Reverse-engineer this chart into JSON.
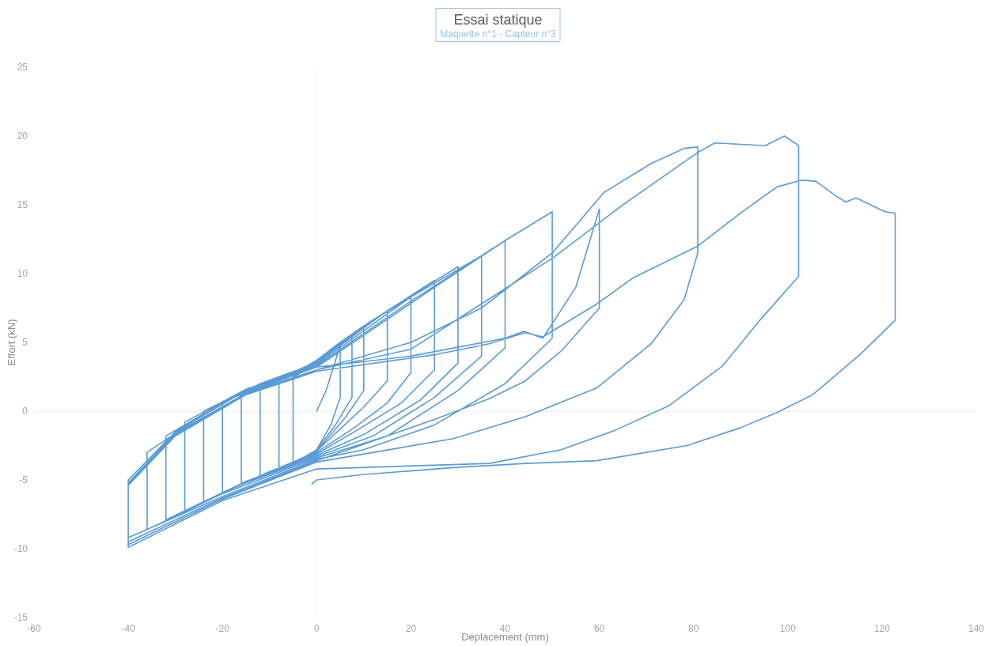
{
  "chart_data": {
    "type": "line",
    "title": "Essai statique",
    "subtitle": "Maquette n°1 - Capteur n°3",
    "xlabel": "Déplacement (mm)",
    "ylabel": "Effort (kN)",
    "xlim": [
      -60,
      140
    ],
    "xticks": [
      -60,
      -40,
      -20,
      0,
      20,
      40,
      60,
      80,
      100,
      120,
      140
    ],
    "ylim": [
      -15,
      25
    ],
    "yticks": [
      -15,
      -10,
      -5,
      0,
      5,
      10,
      15,
      20,
      25
    ],
    "marker": "none",
    "line_style": "solid",
    "series": [
      {
        "color": "#5b9bd5",
        "x": [
          0,
          2,
          5,
          5,
          3,
          0,
          -5,
          -5,
          -2,
          0,
          3,
          7.5,
          7.5,
          4,
          0,
          -5,
          -8,
          -8,
          -4,
          0,
          5,
          10,
          10,
          6,
          0,
          -6,
          -12,
          -12,
          -6,
          0,
          10,
          15,
          15,
          10,
          5,
          0,
          -8,
          -16,
          -16,
          -8,
          0,
          10,
          20,
          20,
          15,
          8,
          0,
          -10,
          -20,
          -20,
          -10,
          0,
          10,
          25,
          25,
          18,
          8,
          0,
          -12,
          -24,
          -24,
          -12,
          0,
          15,
          30,
          30,
          22,
          10,
          0,
          -15,
          -28,
          -28,
          -15,
          0,
          20,
          35,
          35,
          25,
          12,
          0,
          -18,
          -32,
          -32,
          -16,
          0,
          20,
          40,
          40,
          30,
          15,
          0,
          -20,
          -36,
          -36,
          -20,
          0,
          25,
          40,
          50,
          50,
          40,
          25,
          10,
          0,
          -20,
          -40,
          -40,
          -30,
          -15,
          0,
          20,
          40,
          44,
          48,
          55,
          60,
          60,
          52,
          44.3,
          36.6,
          25,
          0,
          -20,
          -40,
          -40,
          -30,
          -15,
          0,
          20,
          35,
          50,
          61,
          71,
          78,
          80.9,
          80.9,
          78,
          71,
          59.5,
          44.3,
          29,
          0,
          -20,
          -40,
          -40,
          -30,
          -15,
          0,
          20,
          35,
          50.4,
          65,
          80.9,
          84.5,
          90,
          95.2,
          99.3,
          102.3,
          102.3,
          93.8,
          86.2,
          74.8,
          63.3,
          51.9,
          36.6,
          0,
          -20,
          -40,
          -40,
          -30,
          -15,
          0,
          25,
          36.6,
          44.3,
          48,
          59.5,
          67.2,
          80.9,
          90,
          97.7,
          103,
          106,
          110,
          112.3,
          114.5,
          120.6,
          122.8,
          122.8,
          115.3,
          105.3,
          97.7,
          90,
          78.6,
          59.5,
          44.3,
          29,
          10,
          0,
          -1
        ],
        "values": [
          0,
          1.5,
          4.8,
          1,
          -1,
          -2.8,
          -3.8,
          2.5,
          3,
          3.6,
          4.5,
          5.5,
          1,
          -1,
          -2.8,
          -3.9,
          -4.3,
          2.2,
          2.9,
          3.7,
          5,
          6.2,
          1.5,
          -0.5,
          -2.9,
          -4,
          -4.8,
          1.7,
          2.6,
          3.6,
          6.1,
          7.3,
          2.2,
          0.3,
          -1.3,
          -2.9,
          -4.2,
          -5.3,
          1.2,
          2.4,
          3.6,
          6.2,
          8.3,
          2.8,
          0.6,
          -1.2,
          -3,
          -4.4,
          -5.9,
          0.6,
          2.2,
          3.5,
          6.2,
          9.5,
          3,
          0.6,
          -1.5,
          -3.1,
          -4.7,
          -6.6,
          0,
          2,
          3.5,
          7.3,
          10.5,
          3.5,
          0.8,
          -1.7,
          -3.2,
          -5.1,
          -7.3,
          -0.8,
          1.6,
          3.4,
          8.3,
          11.3,
          4,
          1,
          -1.8,
          -3.3,
          -5.6,
          -7.9,
          -1.8,
          1.4,
          3.3,
          8,
          12.4,
          4.6,
          1.5,
          -1.8,
          -3.4,
          -6,
          -8.6,
          -3,
          0.7,
          3.2,
          9,
          12.4,
          14.5,
          5.3,
          2,
          -1,
          -2.8,
          -3.5,
          -6.2,
          -9.2,
          -5,
          -1.5,
          1.5,
          3.2,
          4,
          5.3,
          5.8,
          5.3,
          9,
          14.7,
          7.5,
          4.4,
          2.2,
          0.9,
          -0.6,
          -3.6,
          -6.3,
          -9.5,
          -5.2,
          -1.6,
          1.3,
          3,
          5,
          7.5,
          11.5,
          15.9,
          18,
          19.1,
          19.2,
          11.5,
          8.1,
          4.9,
          1.7,
          -0.4,
          -2,
          -3.7,
          -6.4,
          -9.7,
          -5.3,
          -1.7,
          1.2,
          3,
          4.5,
          7.8,
          11.2,
          15,
          18.8,
          19.5,
          19.4,
          19.3,
          20,
          19.3,
          9.8,
          6.5,
          3.3,
          0.4,
          -1.4,
          -2.8,
          -3.8,
          -4.2,
          -6.5,
          -9.9,
          -5.4,
          -1.8,
          1.2,
          2.9,
          4.1,
          4.9,
          5.7,
          5.4,
          7.8,
          9.7,
          12,
          14.4,
          16.3,
          16.8,
          16.7,
          15.7,
          15.2,
          15.5,
          14.5,
          14.4,
          6.6,
          4.1,
          1.2,
          -0.1,
          -1.2,
          -2.5,
          -3.6,
          -3.8,
          -4.1,
          -4.6,
          -5,
          -5.3
        ]
      }
    ]
  }
}
